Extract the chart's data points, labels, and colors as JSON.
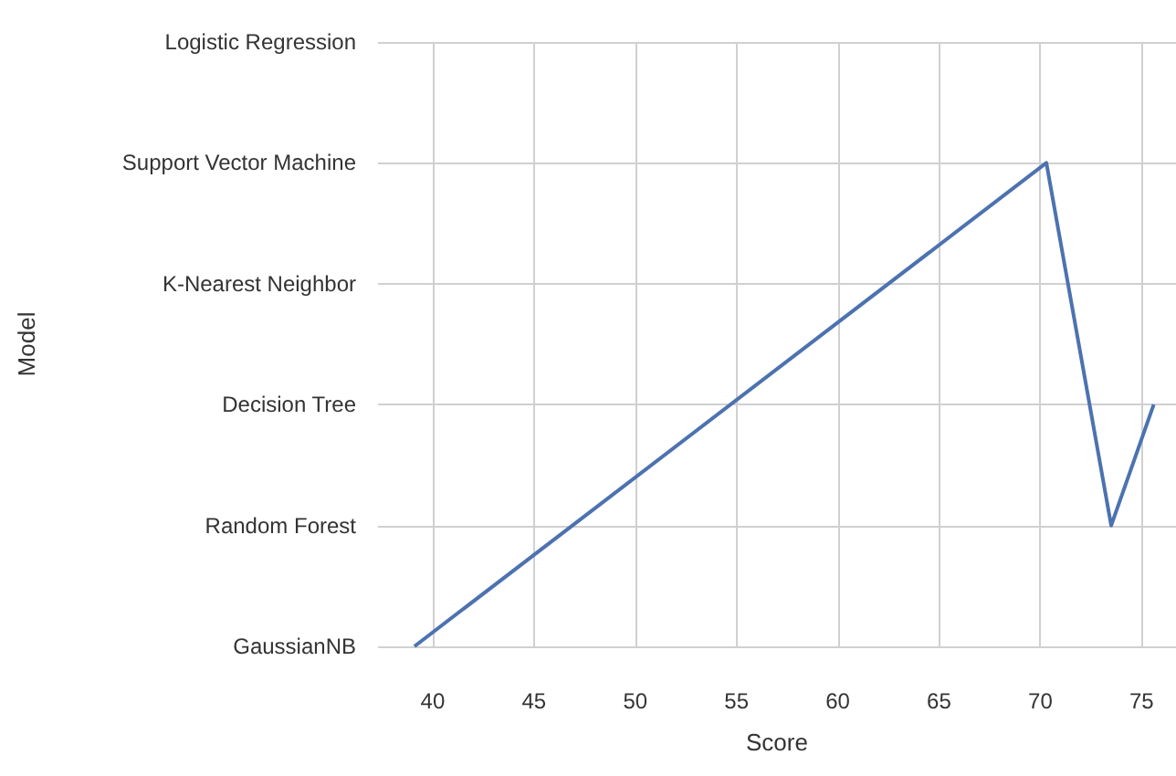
{
  "chart_data": {
    "type": "line",
    "orientation": "horizontal",
    "xlabel": "Score",
    "ylabel": "Model",
    "categories": [
      "Logistic Regression",
      "Support Vector Machine",
      "K-Nearest Neighbor",
      "Decision Tree",
      "Random Forest",
      "GaussianNB"
    ],
    "series": [
      {
        "color": "#4c72b0",
        "values": [
          null,
          70.3,
          null,
          75.6,
          73.5,
          39.1
        ]
      }
    ],
    "xlim": [
      37.3,
      76.7
    ],
    "xticks": [
      40,
      45,
      50,
      55,
      60,
      65,
      70,
      75
    ],
    "grid": true,
    "marker": "none",
    "line_style": "solid"
  }
}
